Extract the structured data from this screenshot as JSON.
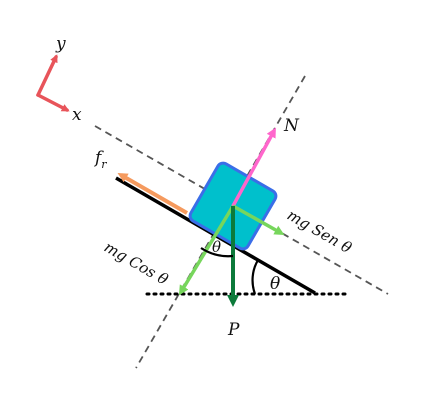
{
  "axes": {
    "x_label": "x",
    "y_label": "y",
    "color": "#e8545a"
  },
  "forces": {
    "normal": {
      "label": "N",
      "color": "#ff66cc"
    },
    "friction": {
      "label": "f",
      "subscript": "r",
      "color": "#f59a5e"
    },
    "weight": {
      "label": "P",
      "color": "#0c7a3a"
    },
    "parallel": {
      "label": "mg Sen θ",
      "color": "#77d65c"
    },
    "perpendicular": {
      "label": "mg Cos θ",
      "color": "#77d65c"
    }
  },
  "angles": {
    "incline": "θ",
    "block": "θ"
  },
  "block": {
    "fill": "#00c0cc",
    "border": "#3a6ee8"
  }
}
